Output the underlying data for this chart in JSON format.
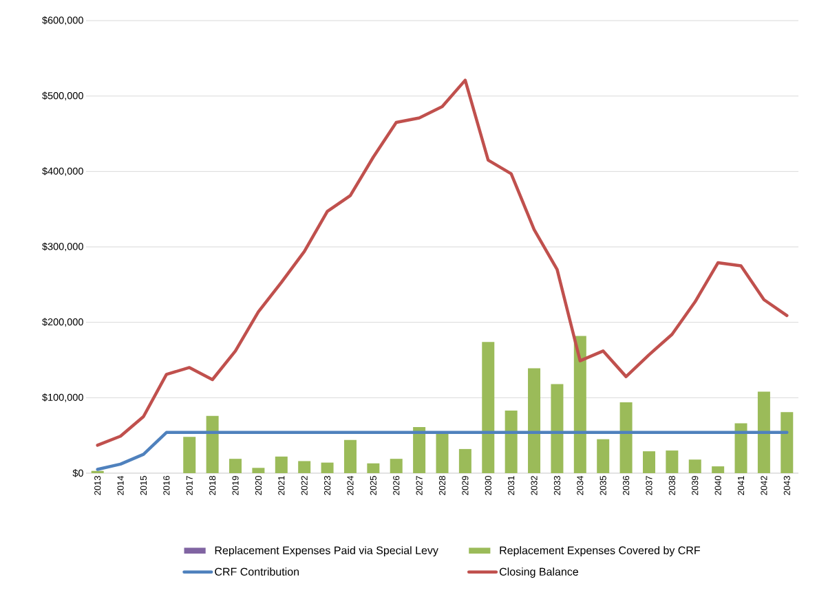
{
  "chart_data": {
    "type": "bar",
    "categories": [
      "2013",
      "2014",
      "2015",
      "2016",
      "2017",
      "2018",
      "2019",
      "2020",
      "2021",
      "2022",
      "2023",
      "2024",
      "2025",
      "2026",
      "2027",
      "2028",
      "2029",
      "2030",
      "2031",
      "2032",
      "2033",
      "2034",
      "2035",
      "2036",
      "2037",
      "2038",
      "2039",
      "2040",
      "2041",
      "2042",
      "2043"
    ],
    "series": [
      {
        "name": "Replacement Expenses Paid via Special Levy",
        "color": "#8064a2",
        "values": [
          0,
          0,
          0,
          0,
          0,
          0,
          0,
          0,
          0,
          0,
          0,
          0,
          0,
          0,
          0,
          0,
          0,
          0,
          0,
          0,
          0,
          0,
          0,
          0,
          0,
          0,
          0,
          0,
          0,
          0,
          0
        ]
      },
      {
        "name": "Replacement Expenses Covered by CRF",
        "color": "#9bbb59",
        "values": [
          3000,
          0,
          0,
          0,
          48000,
          76000,
          19000,
          7000,
          22000,
          16000,
          14000,
          44000,
          13000,
          19000,
          61000,
          52000,
          32000,
          174000,
          83000,
          139000,
          118000,
          182000,
          45000,
          94000,
          29000,
          30000,
          18000,
          9000,
          66000,
          108000,
          81000
        ]
      },
      {
        "name": "CRF Contribution",
        "type": "line",
        "color": "#4f81bd",
        "values": [
          5000,
          12000,
          25000,
          54000,
          54000,
          54000,
          54000,
          54000,
          54000,
          54000,
          54000,
          54000,
          54000,
          54000,
          54000,
          54000,
          54000,
          54000,
          54000,
          54000,
          54000,
          54000,
          54000,
          54000,
          54000,
          54000,
          54000,
          54000,
          54000,
          54000,
          54000
        ]
      },
      {
        "name": "Closing Balance",
        "type": "line",
        "color": "#c0504d",
        "values": [
          37000,
          49000,
          75000,
          131000,
          140000,
          124000,
          162000,
          214000,
          253000,
          294000,
          347000,
          368000,
          419000,
          465000,
          471000,
          486000,
          521000,
          415000,
          397000,
          323000,
          270000,
          149000,
          162000,
          128000,
          157000,
          184000,
          227000,
          279000,
          275000,
          230000,
          209000
        ]
      }
    ],
    "ylim": [
      0,
      600000
    ],
    "yticks": [
      {
        "value": 0,
        "label": "$0"
      },
      {
        "value": 100000,
        "label": "$100,000"
      },
      {
        "value": 200000,
        "label": "$200,000"
      },
      {
        "value": 300000,
        "label": "$300,000"
      },
      {
        "value": 400000,
        "label": "$400,000"
      },
      {
        "value": 500000,
        "label": "$500,000"
      },
      {
        "value": 600000,
        "label": "$600,000"
      }
    ],
    "grid": "y",
    "legend": "bottom",
    "marker": "none",
    "line_style": "solid"
  }
}
